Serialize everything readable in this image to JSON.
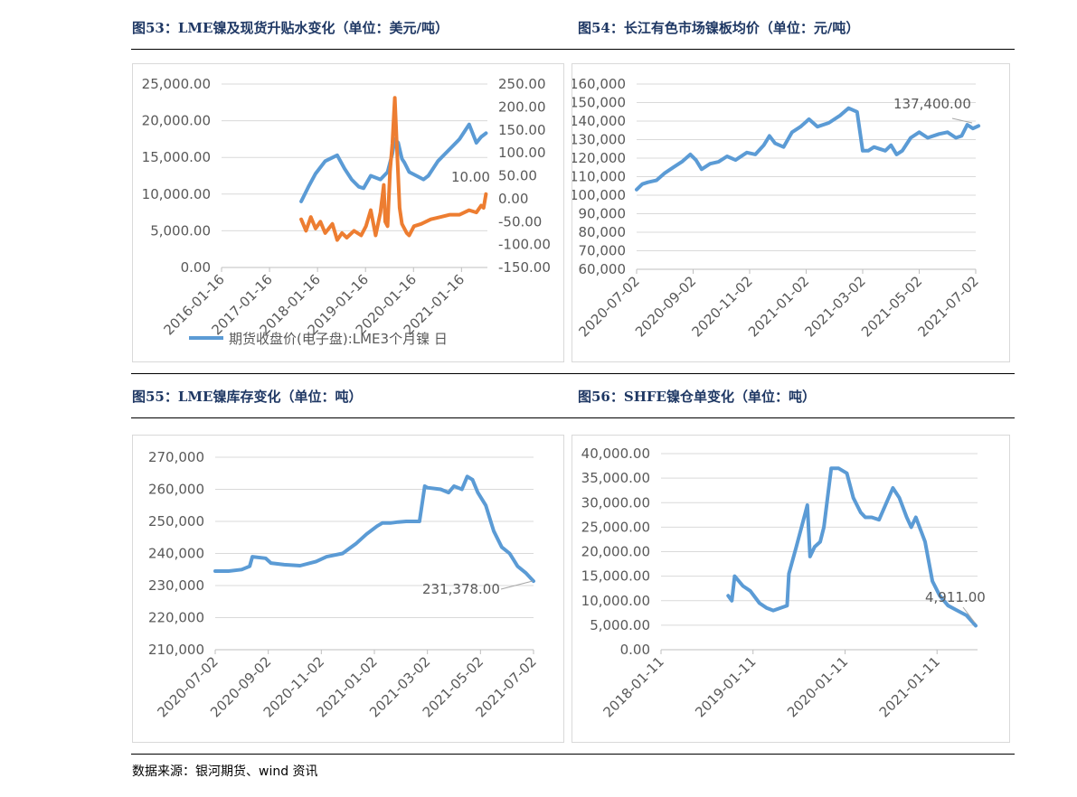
{
  "figures": {
    "fig53_title": "图53：LME镍及现货升贴水变化（单位：美元/吨）",
    "fig54_title": "图54：长江有色市场镍板均价（单位：元/吨）",
    "fig55_title": "图55：LME镍库存变化（单位：吨）",
    "fig56_title": "图56：SHFE镍仓单变化（单位：吨）"
  },
  "source": "数据来源：银河期货、wind 资讯",
  "colors": {
    "blue": "#5b9bd5",
    "orange": "#ed7d31",
    "grid": "#d9d9d9",
    "title": "#1f3864"
  },
  "chart_data": [
    {
      "id": "fig53",
      "type": "line",
      "title": "LME镍及现货升贴水变化（单位：美元/吨）",
      "legend": "期货收盘价(电子盘):LME3个月镍 日",
      "legend_position": "bottom",
      "x_ticks": [
        "2016-01-16",
        "2017-01-16",
        "2018-01-16",
        "2019-01-16",
        "2020-01-16",
        "2021-01-16"
      ],
      "y_left_ticks": [
        "0.00",
        "5,000.00",
        "10,000.00",
        "15,000.00",
        "20,000.00",
        "25,000.00"
      ],
      "ylim_left": [
        0,
        25000
      ],
      "y_right_ticks": [
        "-150.00",
        "-100.00",
        "-50.00",
        "0.00",
        "50.00",
        "100.00",
        "150.00",
        "200.00",
        "250.00"
      ],
      "ylim_right": [
        -150,
        250
      ],
      "annotation": "10.00",
      "series": [
        {
          "name": "期货收盘价(电子盘):LME3个月镍 日",
          "axis": "left",
          "color": "#5b9bd5",
          "x": [
            2017.7,
            2017.85,
            2018.0,
            2018.2,
            2018.45,
            2018.6,
            2018.75,
            2018.9,
            2019.0,
            2019.15,
            2019.35,
            2019.5,
            2019.6,
            2019.65,
            2019.72,
            2019.8,
            2019.85,
            2019.95,
            2020.1,
            2020.25,
            2020.35,
            2020.55,
            2020.7,
            2020.85,
            2021.0,
            2021.2,
            2021.35,
            2021.45,
            2021.55
          ],
          "values": [
            9000,
            11000,
            12800,
            14500,
            15300,
            13500,
            12000,
            11000,
            10800,
            12500,
            12000,
            13000,
            15500,
            17500,
            17000,
            14800,
            14300,
            13000,
            12500,
            12000,
            12500,
            14500,
            15500,
            16500,
            17500,
            19500,
            17000,
            17800,
            18300
          ]
        },
        {
          "name": "现货升贴水",
          "axis": "right",
          "color": "#ed7d31",
          "x": [
            2017.7,
            2017.8,
            2017.9,
            2018.0,
            2018.1,
            2018.2,
            2018.35,
            2018.45,
            2018.55,
            2018.65,
            2018.8,
            2018.95,
            2019.05,
            2019.15,
            2019.25,
            2019.35,
            2019.42,
            2019.45,
            2019.5,
            2019.55,
            2019.6,
            2019.65,
            2019.7,
            2019.75,
            2019.8,
            2019.85,
            2019.9,
            2019.95,
            2020.05,
            2020.2,
            2020.4,
            2020.6,
            2020.8,
            2021.0,
            2021.2,
            2021.35,
            2021.45,
            2021.5,
            2021.55
          ],
          "values": [
            -45,
            -70,
            -40,
            -65,
            -50,
            -75,
            -55,
            -90,
            -75,
            -85,
            -70,
            -80,
            -60,
            -25,
            -80,
            -30,
            30,
            -50,
            -60,
            60,
            120,
            220,
            100,
            -20,
            -55,
            -65,
            -75,
            -80,
            -60,
            -55,
            -45,
            -40,
            -35,
            -35,
            -25,
            -30,
            -15,
            -20,
            10
          ]
        }
      ]
    },
    {
      "id": "fig54",
      "type": "line",
      "title": "长江有色市场镍板均价（单位：元/吨）",
      "x_ticks": [
        "2020-07-02",
        "2020-09-02",
        "2020-11-02",
        "2021-01-02",
        "2021-03-02",
        "2021-05-02",
        "2021-07-02"
      ],
      "y_ticks": [
        "60,000",
        "70,000",
        "80,000",
        "90,000",
        "100,000",
        "110,000",
        "120,000",
        "130,000",
        "140,000",
        "150,000",
        "160,000"
      ],
      "ylim": [
        60000,
        160000
      ],
      "annotation": "137,400.00",
      "series": [
        {
          "name": "长江有色市场镍板均价",
          "color": "#5b9bd5",
          "x": [
            0,
            0.2,
            0.4,
            0.7,
            1.0,
            1.3,
            1.6,
            1.9,
            2.1,
            2.3,
            2.6,
            2.9,
            3.2,
            3.5,
            3.9,
            4.2,
            4.5,
            4.7,
            4.9,
            5.2,
            5.5,
            5.8,
            6.1,
            6.4,
            6.8,
            7.2,
            7.5,
            7.8,
            8.0,
            8.2,
            8.4,
            8.6,
            8.8,
            9.0,
            9.2,
            9.4,
            9.7,
            10.0,
            10.3,
            10.7,
            11.0,
            11.3,
            11.5,
            11.7,
            11.9,
            12.1
          ],
          "values": [
            103000,
            106000,
            107000,
            108000,
            112000,
            115000,
            118000,
            122000,
            119000,
            114000,
            117000,
            118000,
            121000,
            119000,
            123000,
            122000,
            127000,
            132000,
            128000,
            126000,
            134000,
            137000,
            141000,
            137000,
            139000,
            143000,
            147000,
            145000,
            124000,
            124000,
            126000,
            125000,
            124000,
            127000,
            122000,
            124000,
            131000,
            134000,
            131000,
            133000,
            134000,
            131000,
            132000,
            138000,
            136000,
            137400
          ]
        }
      ]
    },
    {
      "id": "fig55",
      "type": "line",
      "title": "LME镍库存变化（单位：吨）",
      "x_ticks": [
        "2020-07-02",
        "2020-09-02",
        "2020-11-02",
        "2021-01-02",
        "2021-03-02",
        "2021-05-02",
        "2021-07-02"
      ],
      "y_ticks": [
        "210,000",
        "220,000",
        "230,000",
        "240,000",
        "250,000",
        "260,000",
        "270,000"
      ],
      "ylim": [
        210000,
        270000
      ],
      "annotation": "231,378.00",
      "series": [
        {
          "name": "LME镍库存",
          "color": "#5b9bd5",
          "x": [
            0,
            0.5,
            1.0,
            1.3,
            1.4,
            1.9,
            2.1,
            2.6,
            3.2,
            3.8,
            4.2,
            4.8,
            5.3,
            5.7,
            6.1,
            6.3,
            6.6,
            6.9,
            7.2,
            7.7,
            7.9,
            8.0,
            8.5,
            8.8,
            9.0,
            9.3,
            9.5,
            9.7,
            9.9,
            10.2,
            10.5,
            10.8,
            11.1,
            11.4,
            11.7,
            12.0
          ],
          "values": [
            234500,
            234500,
            235000,
            236000,
            239000,
            238500,
            237000,
            236500,
            236200,
            237500,
            239000,
            240000,
            243000,
            246000,
            248500,
            249500,
            249500,
            249800,
            250000,
            250000,
            261000,
            260500,
            260000,
            259000,
            261000,
            260000,
            264000,
            263000,
            259000,
            255000,
            247000,
            242000,
            240000,
            236000,
            234000,
            231378
          ]
        }
      ]
    },
    {
      "id": "fig56",
      "type": "line",
      "title": "SHFE镍仓单变化（单位：吨）",
      "x_ticks": [
        "2018-01-11",
        "2019-01-11",
        "2020-01-11",
        "2021-01-11"
      ],
      "y_ticks": [
        "0.00",
        "5,000.00",
        "10,000.00",
        "15,000.00",
        "20,000.00",
        "25,000.00",
        "30,000.00",
        "35,000.00",
        "40,000.00"
      ],
      "ylim": [
        0,
        40000
      ],
      "annotation": "4,911.00",
      "series": [
        {
          "name": "SHFE镍仓单",
          "color": "#5b9bd5",
          "x": [
            2018.76,
            2018.8,
            2018.83,
            2018.92,
            2019.0,
            2019.1,
            2019.18,
            2019.25,
            2019.4,
            2019.42,
            2019.5,
            2019.6,
            2019.62,
            2019.65,
            2019.7,
            2019.76,
            2019.8,
            2019.88,
            2019.96,
            2020.05,
            2020.12,
            2020.2,
            2020.25,
            2020.32,
            2020.4,
            2020.55,
            2020.62,
            2020.7,
            2020.75,
            2020.8,
            2020.9,
            2020.98,
            2021.06,
            2021.15,
            2021.25,
            2021.35,
            2021.45
          ],
          "values": [
            11000,
            10000,
            15000,
            13000,
            12000,
            9500,
            8500,
            8000,
            9000,
            15500,
            21000,
            28000,
            29500,
            19000,
            21000,
            22000,
            25000,
            37000,
            37000,
            36000,
            31000,
            28000,
            27000,
            27000,
            26500,
            33000,
            31000,
            27000,
            25000,
            27000,
            22000,
            14000,
            11000,
            9000,
            8000,
            7000,
            4911
          ]
        }
      ]
    }
  ]
}
